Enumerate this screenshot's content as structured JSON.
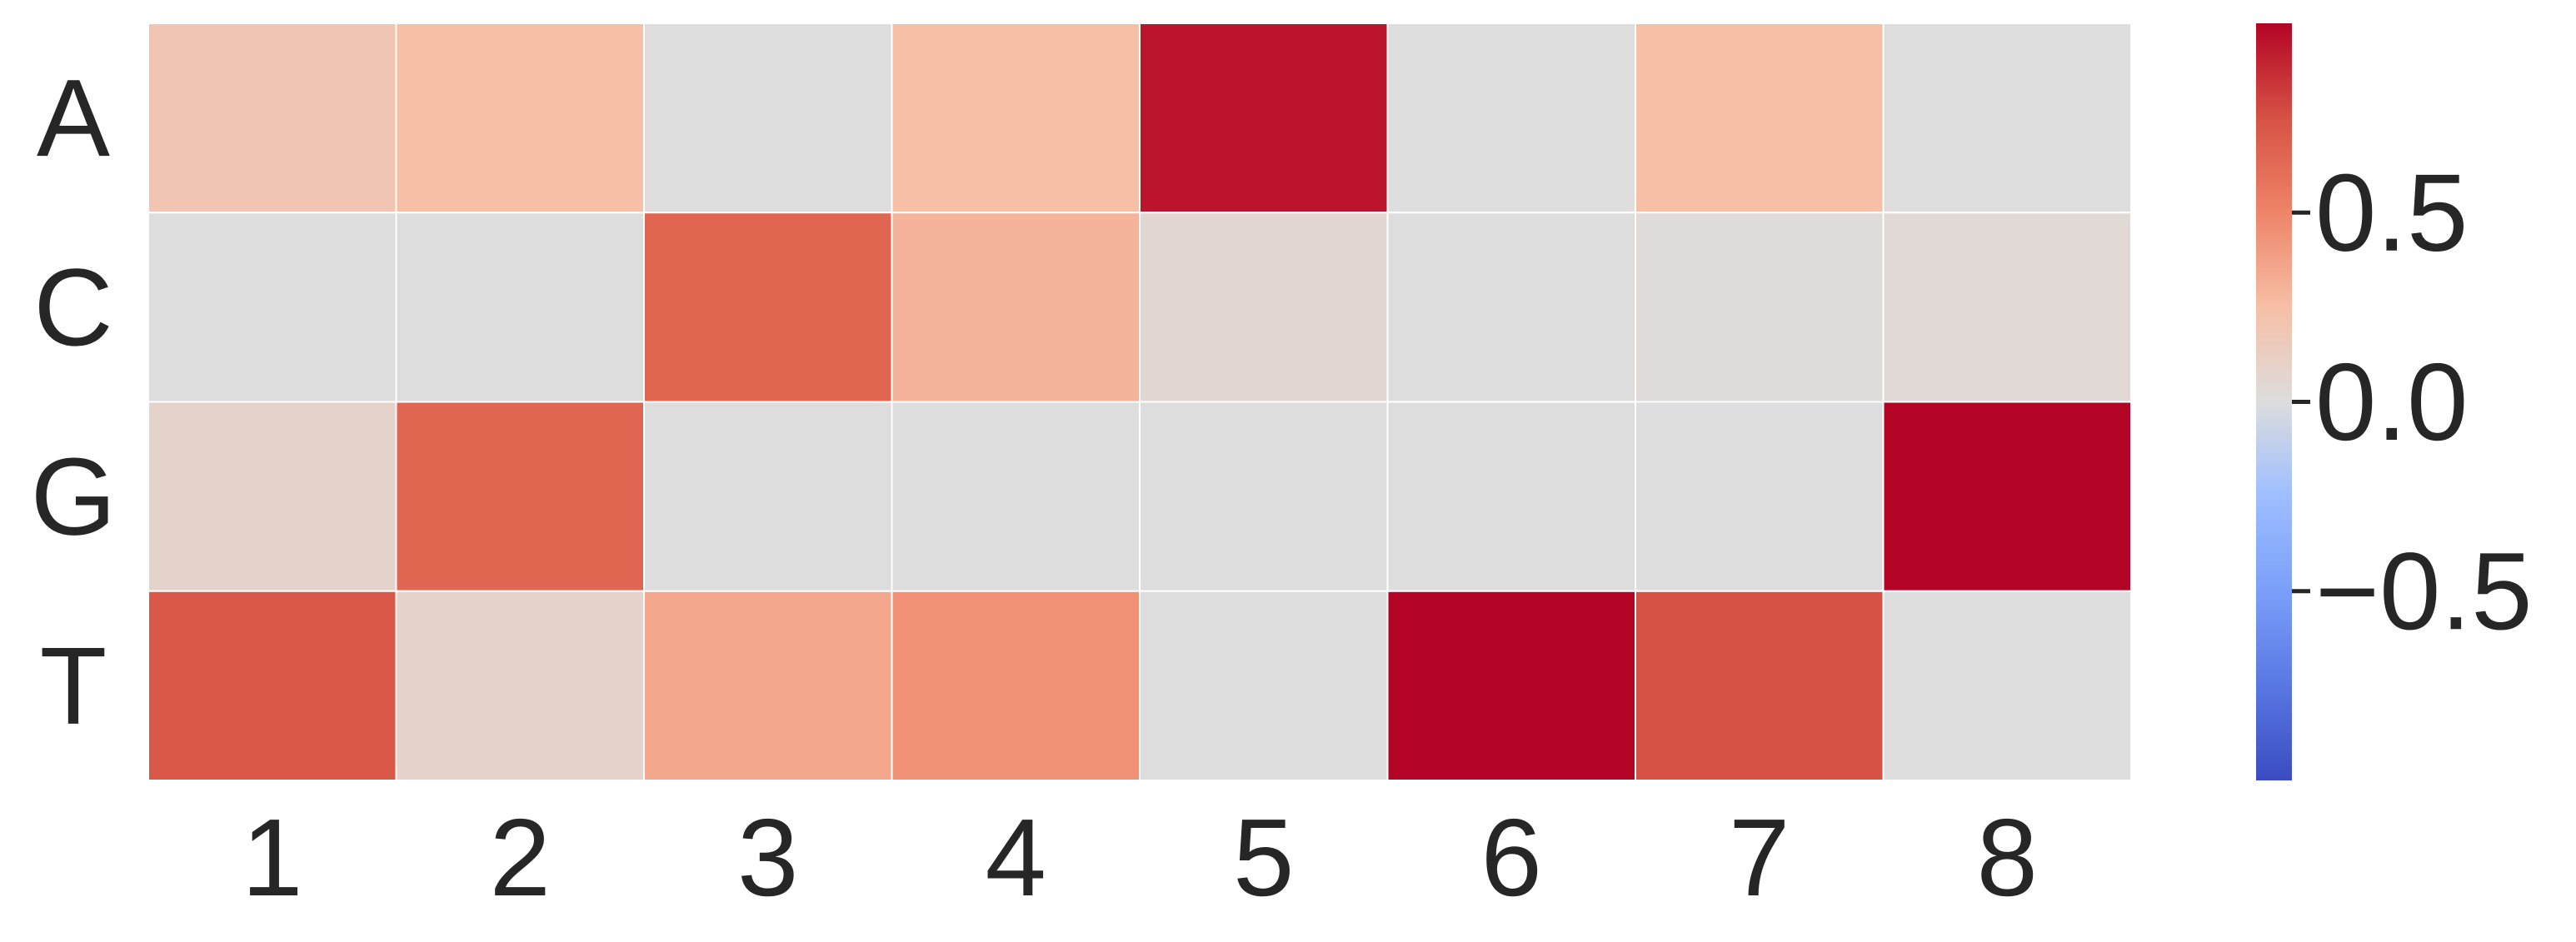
{
  "chart_data": {
    "type": "heatmap",
    "title": "",
    "xlabel": "",
    "ylabel": "",
    "x_categories": [
      "1",
      "2",
      "3",
      "4",
      "5",
      "6",
      "7",
      "8"
    ],
    "y_categories": [
      "A",
      "C",
      "G",
      "T"
    ],
    "values": [
      [
        0.2,
        0.25,
        0.0,
        0.25,
        0.95,
        0.0,
        0.25,
        0.0
      ],
      [
        0.0,
        0.0,
        0.65,
        0.3,
        0.05,
        0.0,
        0.02,
        0.03
      ],
      [
        0.08,
        0.65,
        0.0,
        0.0,
        0.0,
        0.0,
        0.0,
        1.0
      ],
      [
        0.72,
        0.08,
        0.35,
        0.45,
        0.0,
        1.0,
        0.75,
        0.0
      ]
    ],
    "colorbar": {
      "colormap": "coolwarm",
      "vmin": -1.0,
      "vmax": 1.0,
      "ticks": [
        0.5,
        0.0,
        -0.5
      ],
      "tick_labels": [
        "0.5",
        "0.0",
        "−0.5"
      ],
      "position": "right"
    },
    "grid": true
  }
}
